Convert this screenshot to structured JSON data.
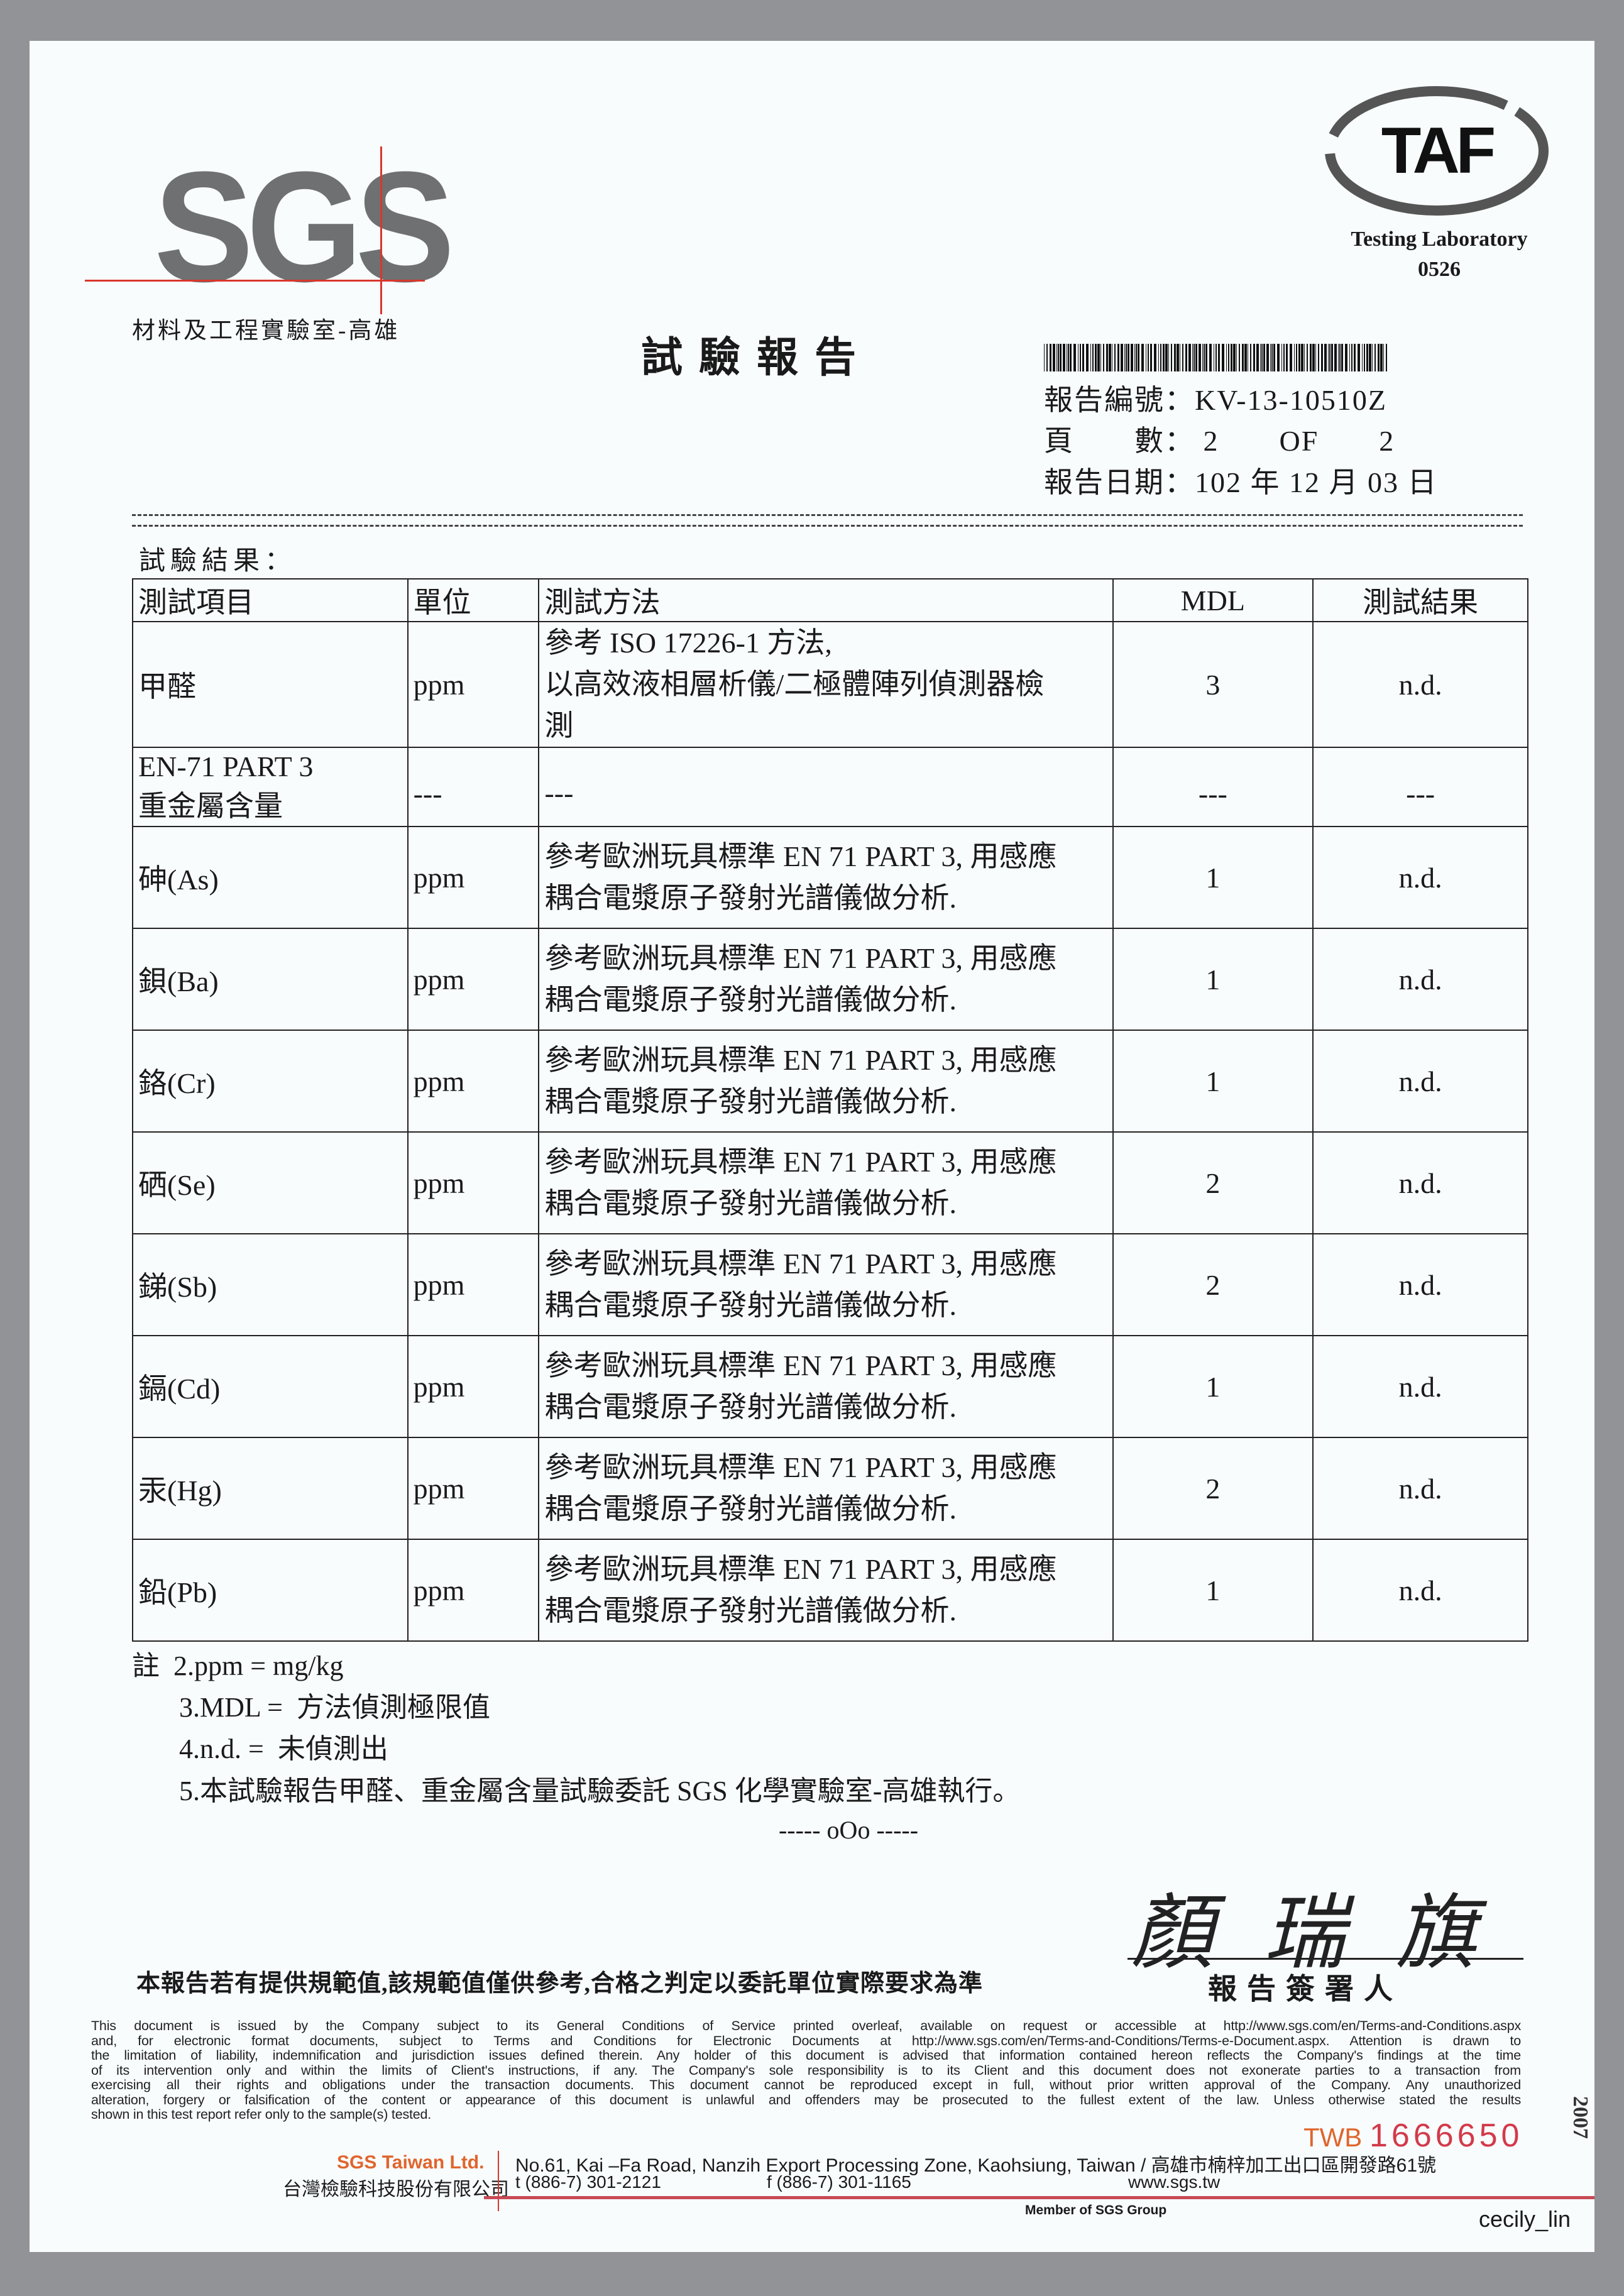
{
  "header": {
    "logo_text": "SGS",
    "lab_name": "材料及工程實驗室-高雄",
    "accreditation": {
      "logo_text": "TAF",
      "label": "Testing Laboratory",
      "number": "0526"
    },
    "title": "試驗報告",
    "report_no": "報告編號：KV-13-10510Z",
    "pages": "頁　　數： 2　　OF　　2",
    "report_date": "報告日期：102 年 12 月 03 日"
  },
  "results": {
    "label": "試驗結果：",
    "columns": [
      "測試項目",
      "單位",
      "測試方法",
      "MDL",
      "測試結果"
    ],
    "rows": [
      {
        "item": "甲醛",
        "unit": "ppm",
        "method": "參考 ISO 17226-1 方法,\n以高效液相層析儀/二極體陣列偵測器檢\n測",
        "mdl": "3",
        "result": "n.d."
      },
      {
        "item": "EN-71 PART 3\n重金屬含量",
        "unit": "---",
        "method": "---",
        "mdl": "---",
        "result": "---"
      },
      {
        "item": "砷(As)",
        "unit": "ppm",
        "method": "參考歐洲玩具標準 EN 71 PART 3, 用感應\n耦合電漿原子發射光譜儀做分析.",
        "mdl": "1",
        "result": "n.d."
      },
      {
        "item": "鋇(Ba)",
        "unit": "ppm",
        "method": "參考歐洲玩具標準 EN 71 PART 3, 用感應\n耦合電漿原子發射光譜儀做分析.",
        "mdl": "1",
        "result": "n.d."
      },
      {
        "item": "鉻(Cr)",
        "unit": "ppm",
        "method": "參考歐洲玩具標準 EN 71 PART 3, 用感應\n耦合電漿原子發射光譜儀做分析.",
        "mdl": "1",
        "result": "n.d."
      },
      {
        "item": "硒(Se)",
        "unit": "ppm",
        "method": "參考歐洲玩具標準 EN 71 PART 3, 用感應\n耦合電漿原子發射光譜儀做分析.",
        "mdl": "2",
        "result": "n.d."
      },
      {
        "item": "銻(Sb)",
        "unit": "ppm",
        "method": "參考歐洲玩具標準 EN 71 PART 3, 用感應\n耦合電漿原子發射光譜儀做分析.",
        "mdl": "2",
        "result": "n.d."
      },
      {
        "item": "鎘(Cd)",
        "unit": "ppm",
        "method": "參考歐洲玩具標準 EN 71 PART 3, 用感應\n耦合電漿原子發射光譜儀做分析.",
        "mdl": "1",
        "result": "n.d."
      },
      {
        "item": "汞(Hg)",
        "unit": "ppm",
        "method": "參考歐洲玩具標準 EN 71 PART 3, 用感應\n耦合電漿原子發射光譜儀做分析.",
        "mdl": "2",
        "result": "n.d."
      },
      {
        "item": "鉛(Pb)",
        "unit": "ppm",
        "method": "參考歐洲玩具標準 EN 71 PART 3, 用感應\n耦合電漿原子發射光譜儀做分析.",
        "mdl": "1",
        "result": "n.d."
      }
    ]
  },
  "notes": [
    "註  2.ppm = mg/kg",
    "3.MDL =  方法偵測極限值",
    "4.n.d. =  未偵測出",
    "5.本試驗報告甲醛、重金屬含量試驗委託 SGS 化學實驗室-高雄執行。"
  ],
  "end_mark": "----- oOo -----",
  "signature": "顏瑞旗",
  "signer_label": "報告簽署人",
  "disclaimer_zh": "本報告若有提供規範值,該規範值僅供參考,合格之判定以委託單位實際要求為準",
  "fine_print": [
    "This document is issued by the Company subject to its General Conditions of Service printed overleaf, available on request or accessible at http://www.sgs.com/en/Terms-and-Conditions.aspx",
    "and, for electronic format documents, subject to Terms and Conditions for Electronic Documents at http://www.sgs.com/en/Terms-and-Conditions/Terms-e-Document.aspx. Attention is drawn to",
    "the limitation of liability, indemnification and jurisdiction issues defined therein. Any holder of this document is advised that information contained hereon reflects the Company's findings at the time",
    "of its intervention only and within the limits of Client's instructions, if any. The Company's sole responsibility is to its Client and this document does not exonerate parties to a transaction from",
    "exercising all their rights and obligations under the transaction documents. This document cannot be reproduced except in full, without prior written approval of the Company. Any unauthorized",
    "alteration, forgery or falsification of the content or appearance of this document is unlawful and offenders may be prosecuted to the fullest extent of the law. Unless otherwise stated the results",
    "shown in this test report refer only to the sample(s) tested."
  ],
  "serial": {
    "prefix": "TWB",
    "number": "1666650"
  },
  "form_year": "2007",
  "footer": {
    "company_en": "SGS Taiwan Ltd.",
    "company_zh": "台灣檢驗科技股份有限公司",
    "address": "No.61, Kai –Fa Road, Nanzih Export Processing Zone, Kaohsiung, Taiwan / 高雄市楠梓加工出口區開發路61號",
    "tel": "t (886-7) 301-2121",
    "fax": "f (886-7) 301-1165",
    "web": "www.sgs.tw",
    "member": "Member of SGS Group",
    "user": "cecily_lin"
  },
  "colors": {
    "paper": "#f8fcfd",
    "background": "#929396",
    "brand_red": "#d9362b",
    "brand_orange": "#e0652d",
    "logo_gray": "#6f7072"
  }
}
